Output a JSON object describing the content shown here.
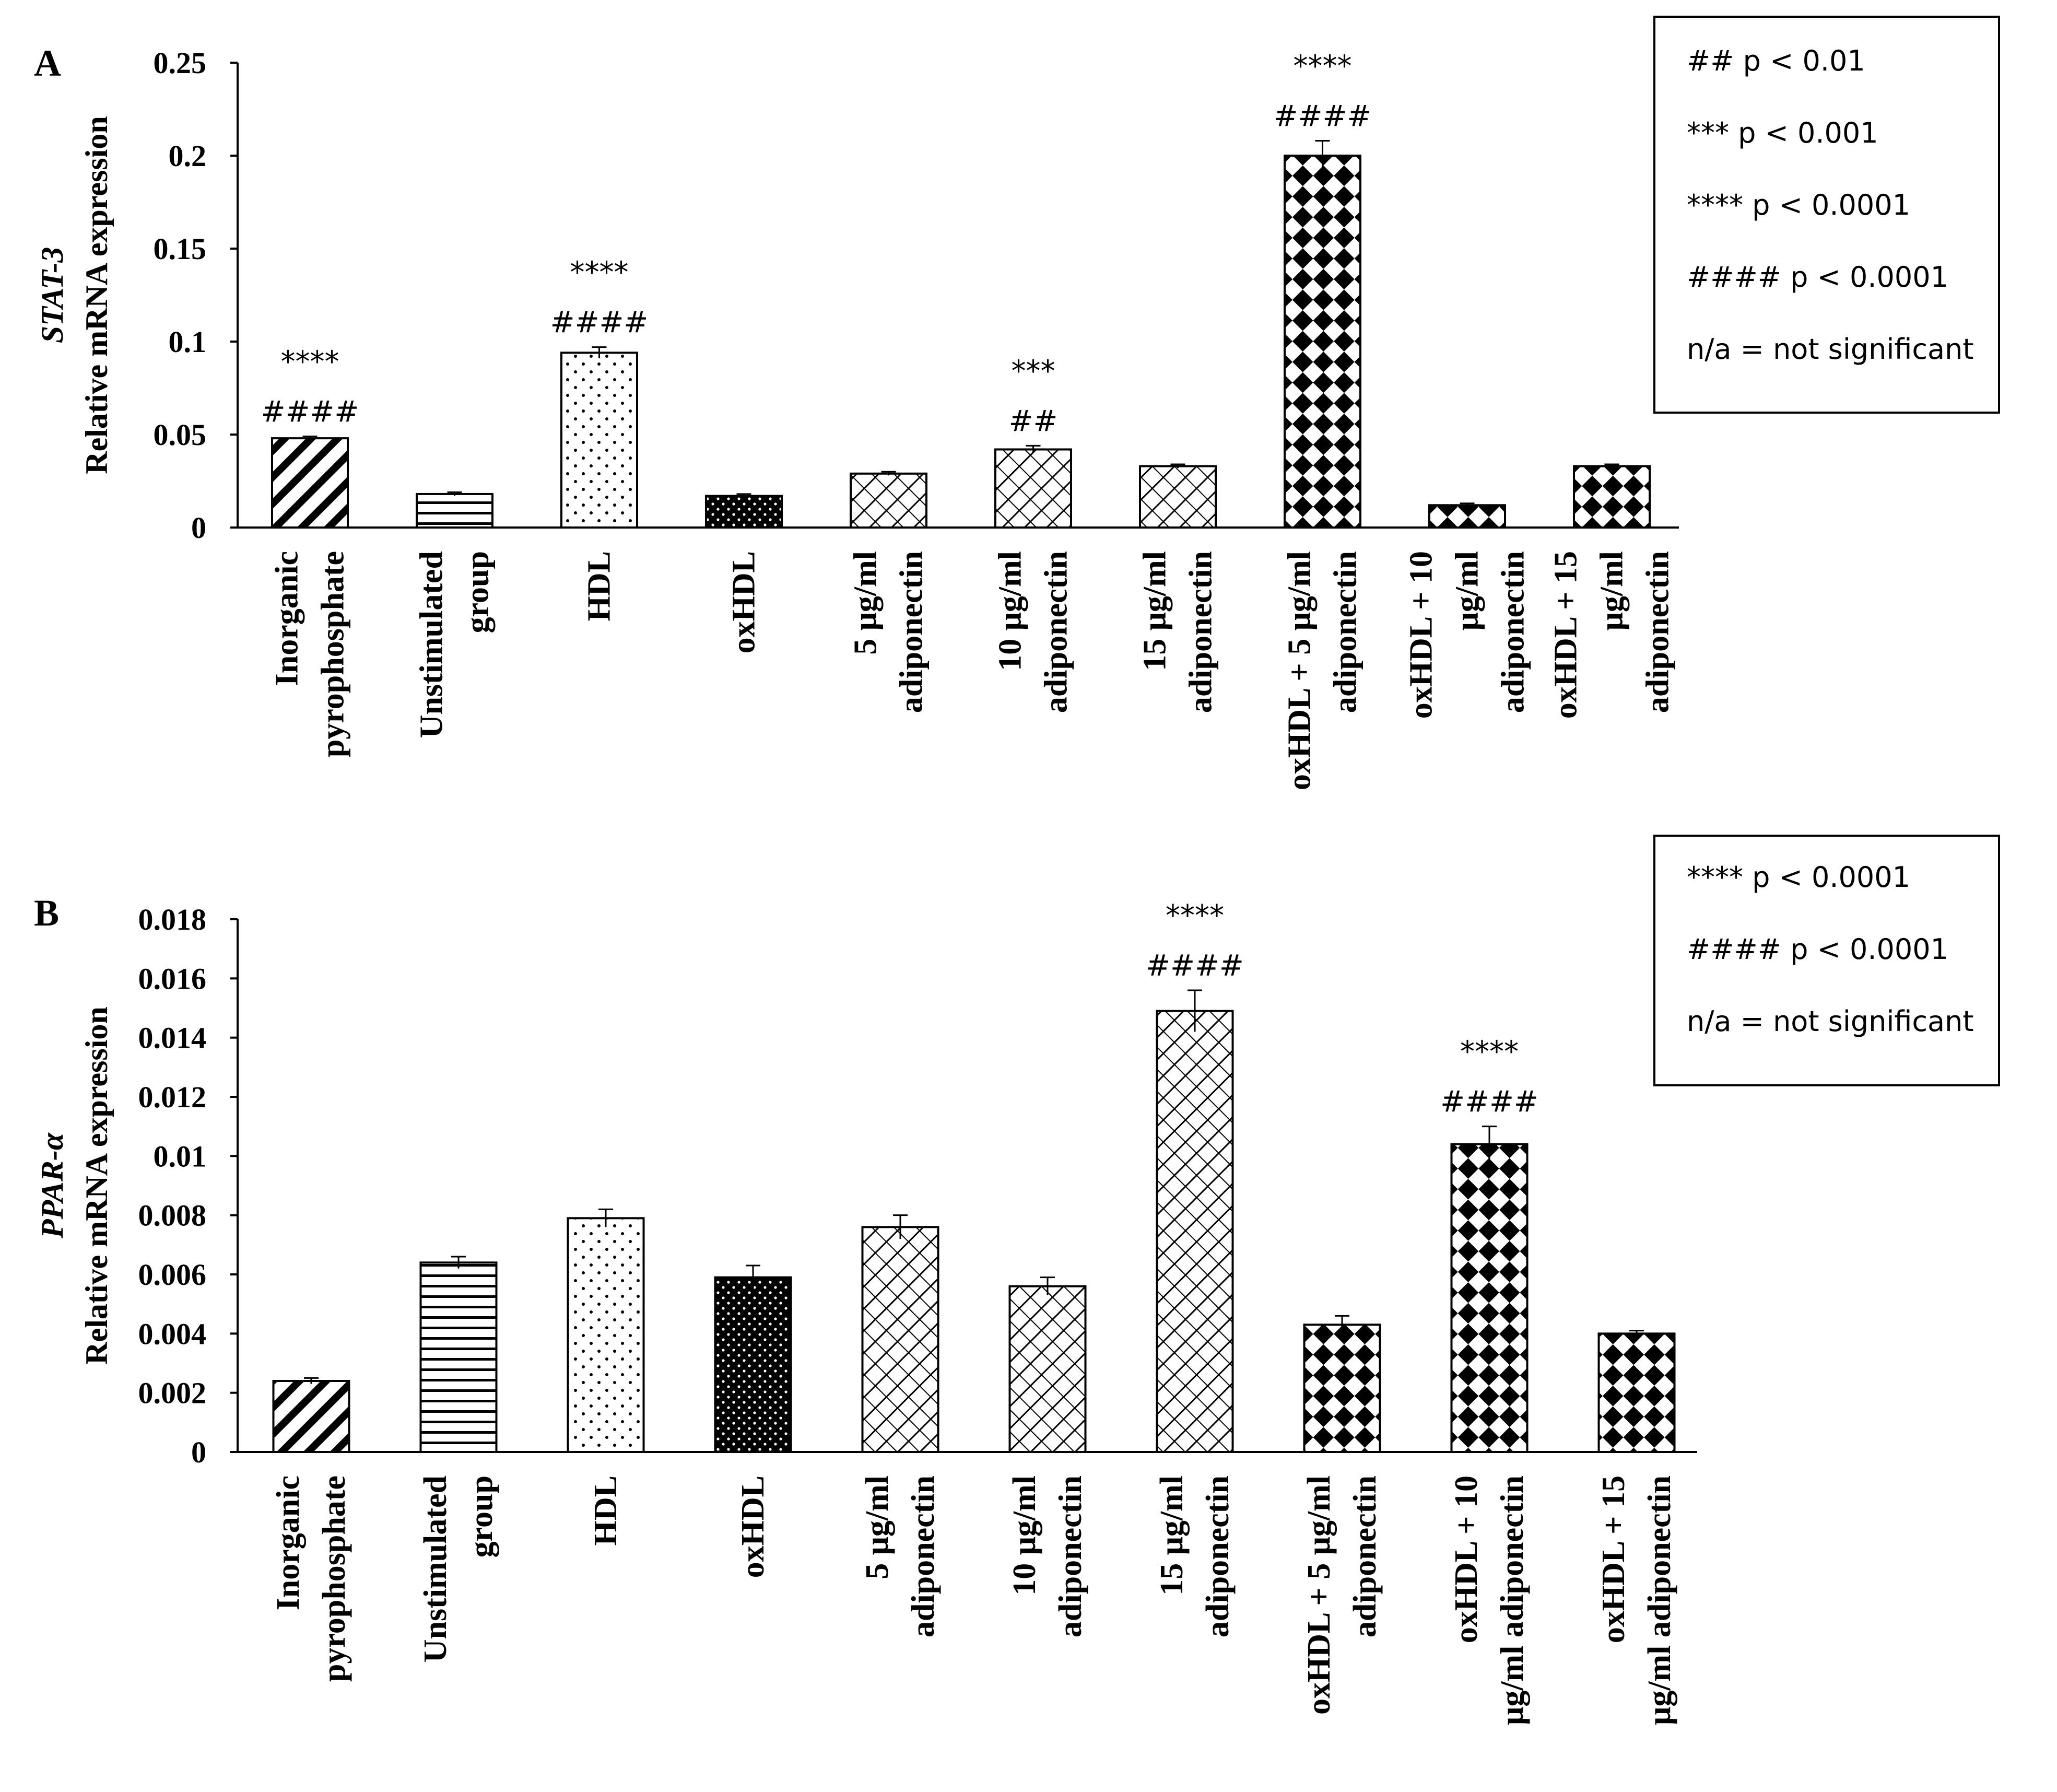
{
  "chart_data": [
    {
      "type": "bar",
      "panel_label": "A",
      "ylabel_gene": "STAT-3",
      "ylabel": "Relative mRNA expression",
      "ylim": [
        0,
        0.25
      ],
      "yticks": [
        {
          "value": 0,
          "label": "0"
        },
        {
          "value": 0.05,
          "label": "0.05"
        },
        {
          "value": 0.1,
          "label": "0.1"
        },
        {
          "value": 0.15,
          "label": "0.15"
        },
        {
          "value": 0.2,
          "label": "0.2"
        },
        {
          "value": 0.25,
          "label": "0.25"
        }
      ],
      "categories": [
        [
          "Inorganic",
          "pyrophosphate"
        ],
        [
          "Unstimulated",
          "group"
        ],
        [
          "HDL"
        ],
        [
          "oxHDL"
        ],
        [
          "5 μg/ml",
          "adiponectin"
        ],
        [
          "10 μg/ml",
          "adiponectin"
        ],
        [
          "15 μg/ml",
          "adiponectin"
        ],
        [
          "oxHDL + 5 μg/ml",
          "adiponectin"
        ],
        [
          "oxHDL + 10",
          "μg/ml",
          "adiponectin"
        ],
        [
          "oxHDL + 15",
          "μg/ml",
          "adiponectin"
        ]
      ],
      "values": [
        0.048,
        0.018,
        0.094,
        0.017,
        0.029,
        0.042,
        0.033,
        0.2,
        0.012,
        0.033
      ],
      "errors": [
        0.001,
        0.001,
        0.003,
        0.001,
        0.001,
        0.002,
        0.001,
        0.008,
        0.001,
        0.001
      ],
      "patterns": [
        "diag-thick",
        "horizontal",
        "dots",
        "dark-dots",
        "crosshatch",
        "crosshatch",
        "crosshatch",
        "diamonds",
        "diamonds",
        "diamonds"
      ],
      "annotations": [
        {
          "index": 0,
          "lines": [
            "****",
            "####"
          ]
        },
        {
          "index": 2,
          "lines": [
            "****",
            "####"
          ]
        },
        {
          "index": 5,
          "lines": [
            "***",
            "##"
          ]
        },
        {
          "index": 7,
          "lines": [
            "****",
            "####"
          ]
        }
      ],
      "legend": {
        "placement": "top-right",
        "entries": [
          {
            "marks": "##",
            "text": "p < 0.01"
          },
          {
            "marks": "***",
            "text": "p < 0.001"
          },
          {
            "marks": "****",
            "text": "p < 0.0001"
          },
          {
            "marks": "####",
            "text": "p < 0.0001"
          },
          {
            "marks": "",
            "text": "n/a = not significant"
          }
        ]
      }
    },
    {
      "type": "bar",
      "panel_label": "B",
      "ylabel_gene": "PPAR-α",
      "ylabel": "Relative mRNA expression",
      "ylim": [
        0,
        0.018
      ],
      "yticks": [
        {
          "value": 0,
          "label": "0"
        },
        {
          "value": 0.002,
          "label": "0.002"
        },
        {
          "value": 0.004,
          "label": "0.004"
        },
        {
          "value": 0.006,
          "label": "0.006"
        },
        {
          "value": 0.008,
          "label": "0.008"
        },
        {
          "value": 0.01,
          "label": "0.01"
        },
        {
          "value": 0.012,
          "label": "0.012"
        },
        {
          "value": 0.014,
          "label": "0.014"
        },
        {
          "value": 0.016,
          "label": "0.016"
        },
        {
          "value": 0.018,
          "label": "0.018"
        }
      ],
      "categories": [
        [
          "Inorganic",
          "pyrophosphate"
        ],
        [
          "Unstimulated",
          "group"
        ],
        [
          "HDL"
        ],
        [
          "oxHDL"
        ],
        [
          "5 μg/ml",
          "adiponectin"
        ],
        [
          "10 μg/ml",
          "adiponectin"
        ],
        [
          "15 μg/ml",
          "adiponectin"
        ],
        [
          "oxHDL + 5 μg/ml",
          "adiponectin"
        ],
        [
          "oxHDL + 10",
          "μg/ml adiponectin"
        ],
        [
          "oxHDL + 15",
          "μg/ml adiponectin"
        ]
      ],
      "values": [
        0.0024,
        0.0064,
        0.0079,
        0.0059,
        0.0076,
        0.0056,
        0.0149,
        0.0043,
        0.0104,
        0.004
      ],
      "errors": [
        0.0001,
        0.0002,
        0.0003,
        0.0004,
        0.0004,
        0.0003,
        0.0007,
        0.0003,
        0.0006,
        0.0001
      ],
      "patterns": [
        "diag-thick",
        "horizontal",
        "dots",
        "dark-dots",
        "crosshatch",
        "crosshatch",
        "crosshatch",
        "diamonds",
        "diamonds",
        "diamonds"
      ],
      "annotations": [
        {
          "index": 6,
          "lines": [
            "****",
            "####"
          ]
        },
        {
          "index": 8,
          "lines": [
            "****",
            "####"
          ]
        }
      ],
      "legend": {
        "placement": "top-right",
        "entries": [
          {
            "marks": "****",
            "text": "p < 0.0001"
          },
          {
            "marks": "####",
            "text": "p < 0.0001"
          },
          {
            "marks": "",
            "text": "n/a = not significant"
          }
        ]
      }
    }
  ]
}
